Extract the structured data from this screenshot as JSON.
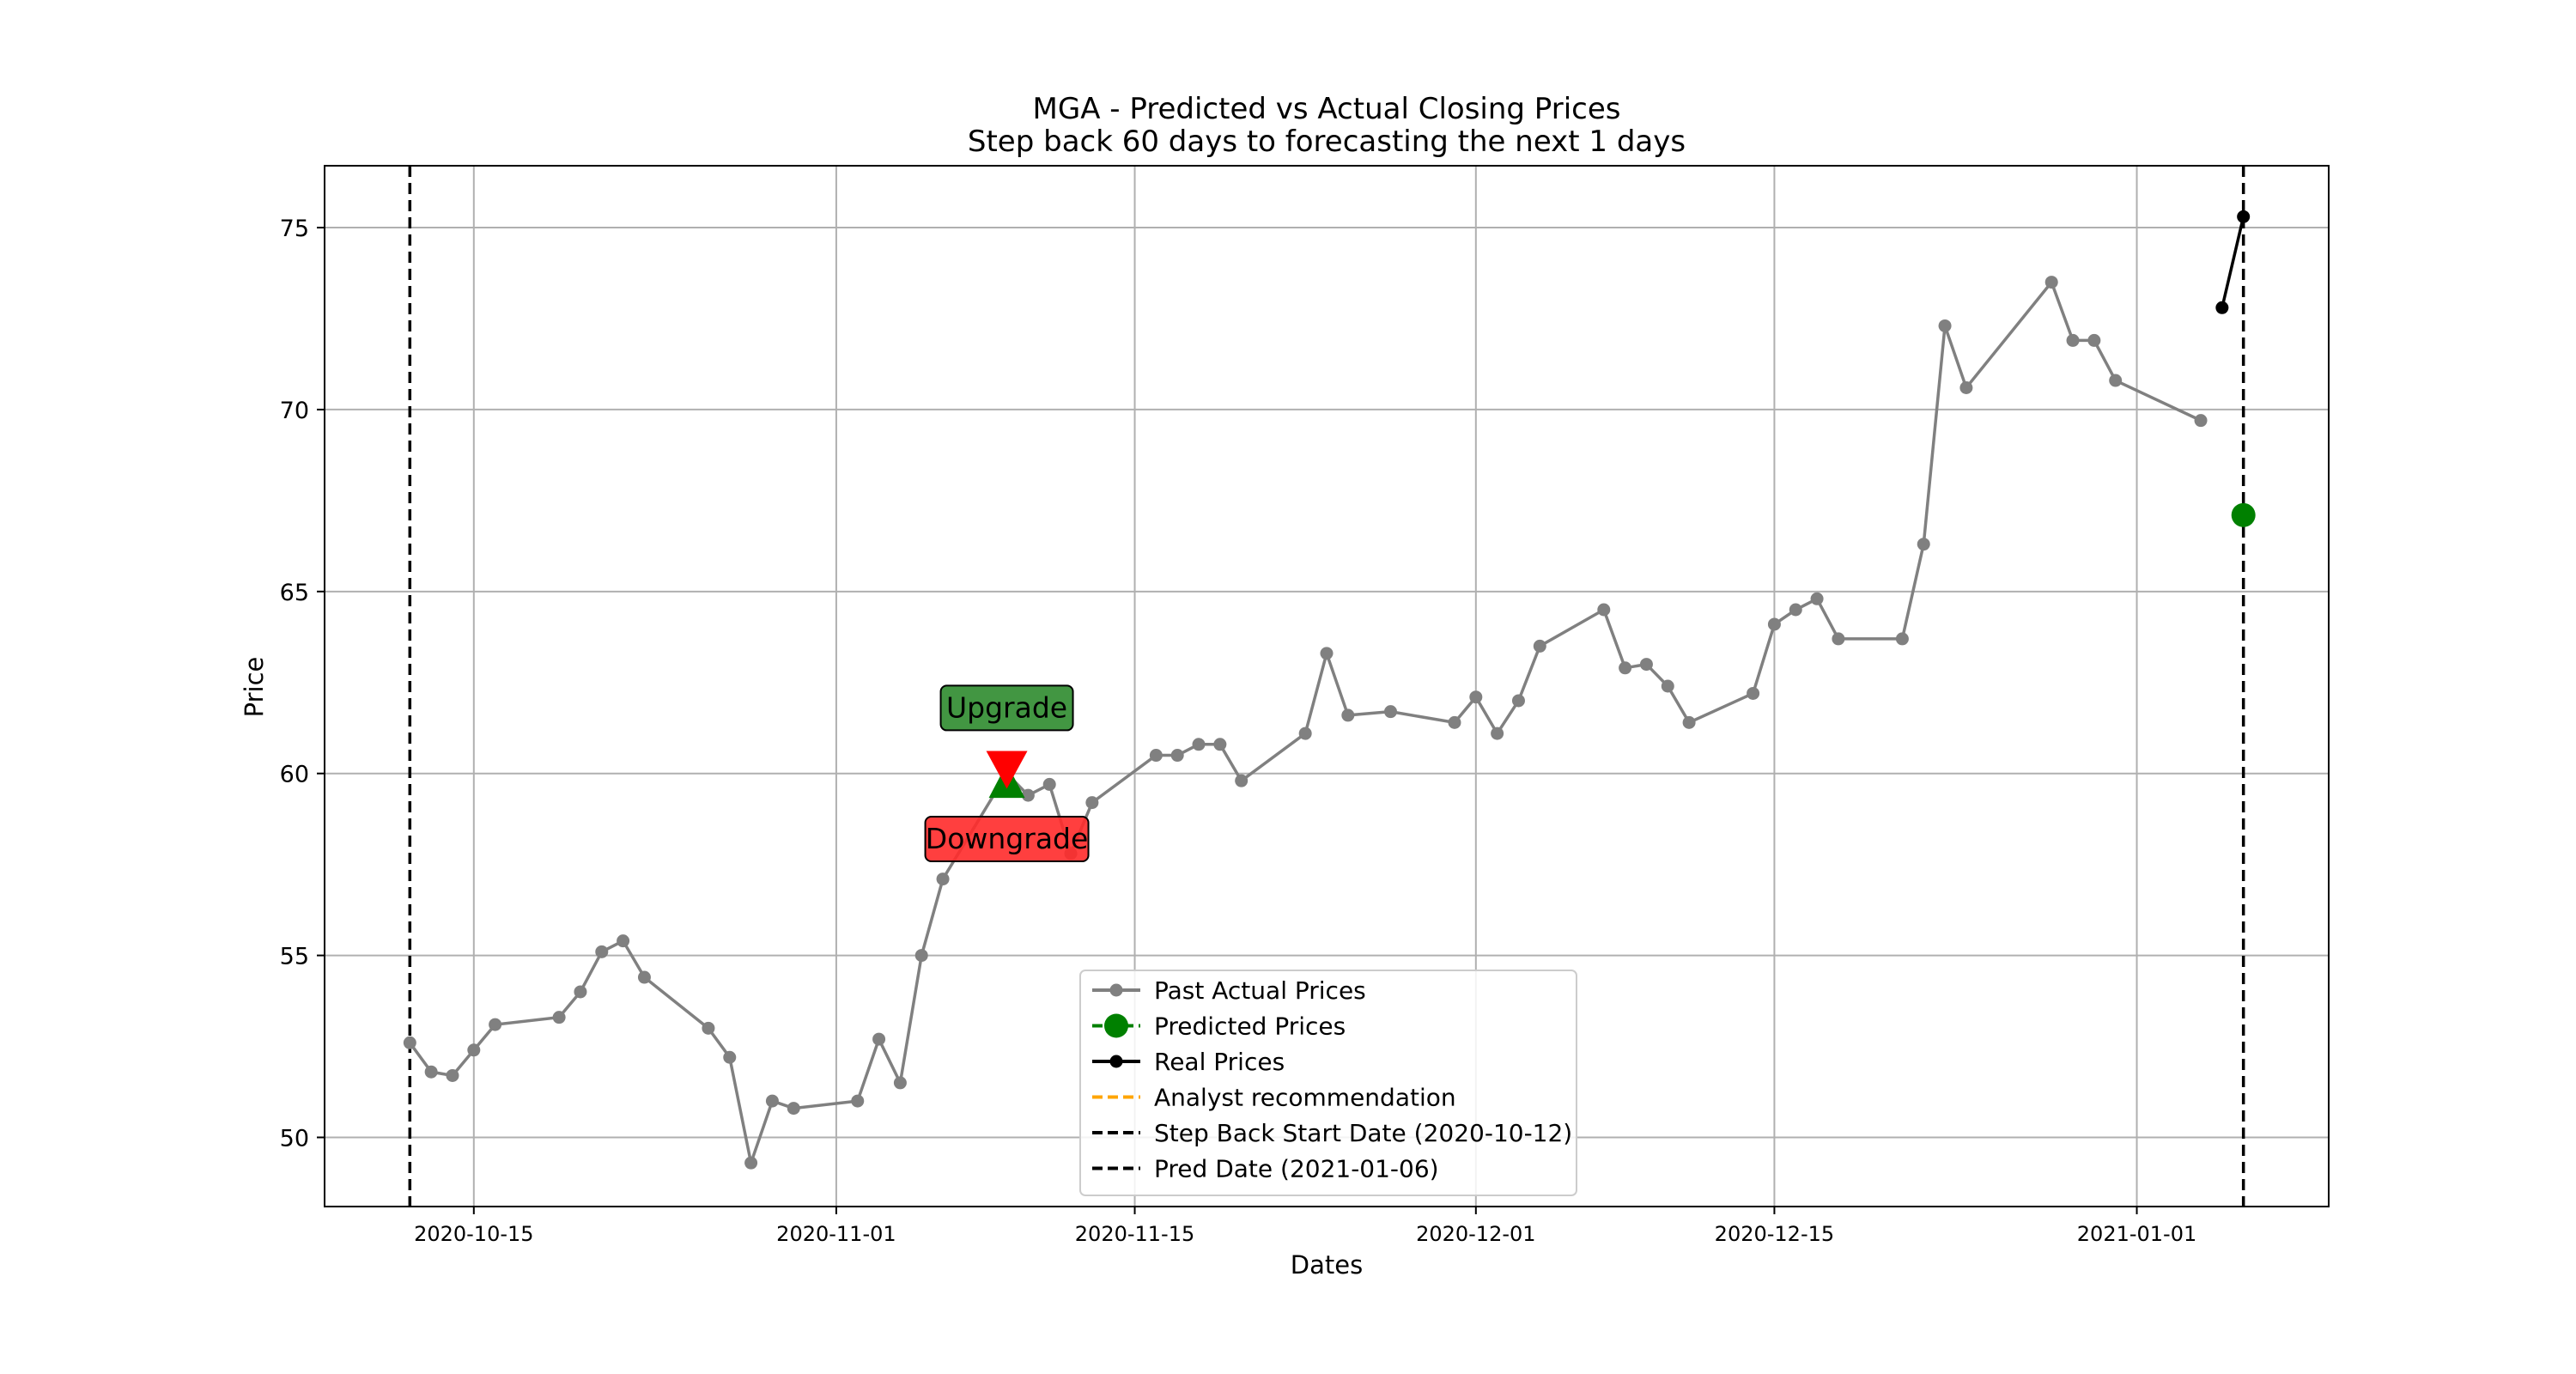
{
  "chart_data": {
    "type": "line",
    "title": "MGA - Predicted vs Actual Closing Prices",
    "subtitle": "Step back 60 days to forecasting the next 1 days",
    "xlabel": "Dates",
    "ylabel": "Price",
    "xlim": [
      "2020-10-08",
      "2021-01-10"
    ],
    "ylim": [
      48.1,
      76.7
    ],
    "grid": true,
    "legend_position": "lower center",
    "x_ticks": [
      "2020-10-15",
      "2020-11-01",
      "2020-11-15",
      "2020-12-01",
      "2020-12-15",
      "2021-01-01"
    ],
    "y_ticks": [
      50,
      55,
      60,
      65,
      70,
      75
    ],
    "colors": {
      "past": "#808080",
      "predicted": "#008000",
      "real": "#000000",
      "analyst": "#ffa500",
      "upgrade_box": "#2e8b2e",
      "downgrade_box": "#ff2a2a",
      "downgrade_marker": "#ff0000"
    },
    "series": [
      {
        "name": "Past Actual Prices",
        "style": "gray line with dot markers",
        "x": [
          "2020-10-12",
          "2020-10-13",
          "2020-10-14",
          "2020-10-15",
          "2020-10-16",
          "2020-10-19",
          "2020-10-20",
          "2020-10-21",
          "2020-10-22",
          "2020-10-23",
          "2020-10-26",
          "2020-10-27",
          "2020-10-28",
          "2020-10-29",
          "2020-10-30",
          "2020-11-02",
          "2020-11-03",
          "2020-11-04",
          "2020-11-05",
          "2020-11-06",
          "2020-11-09",
          "2020-11-10",
          "2020-11-11",
          "2020-11-12",
          "2020-11-13",
          "2020-11-16",
          "2020-11-17",
          "2020-11-18",
          "2020-11-19",
          "2020-11-20",
          "2020-11-23",
          "2020-11-24",
          "2020-11-25",
          "2020-11-27",
          "2020-11-30",
          "2020-12-01",
          "2020-12-02",
          "2020-12-03",
          "2020-12-04",
          "2020-12-07",
          "2020-12-08",
          "2020-12-09",
          "2020-12-10",
          "2020-12-11",
          "2020-12-14",
          "2020-12-15",
          "2020-12-16",
          "2020-12-17",
          "2020-12-18",
          "2020-12-21",
          "2020-12-22",
          "2020-12-23",
          "2020-12-24",
          "2020-12-28",
          "2020-12-29",
          "2020-12-30",
          "2020-12-31",
          "2021-01-04"
        ],
        "values": [
          52.6,
          51.8,
          51.7,
          52.4,
          53.1,
          53.3,
          54.0,
          55.1,
          55.4,
          54.4,
          53.0,
          52.2,
          49.3,
          51.0,
          50.8,
          51.0,
          52.7,
          51.5,
          55.0,
          57.1,
          60.0,
          59.4,
          59.7,
          57.8,
          59.2,
          60.5,
          60.5,
          60.8,
          60.8,
          59.8,
          61.1,
          63.3,
          61.6,
          61.7,
          61.4,
          62.1,
          61.1,
          62.0,
          63.5,
          64.5,
          62.9,
          63.0,
          62.4,
          61.4,
          62.2,
          64.1,
          64.5,
          64.8,
          63.7,
          63.7,
          66.3,
          72.3,
          70.6,
          73.5,
          71.9,
          71.9,
          70.8,
          69.7
        ]
      },
      {
        "name": "Predicted Prices",
        "style": "green large circle marker",
        "x": [
          "2021-01-06"
        ],
        "values": [
          67.1
        ]
      },
      {
        "name": "Real Prices",
        "style": "black line with dot markers",
        "x": [
          "2021-01-05",
          "2021-01-06"
        ],
        "values": [
          72.8,
          75.3
        ]
      },
      {
        "name": "Analyst recommendation",
        "style": "orange dashed line",
        "x": [],
        "values": []
      },
      {
        "name": "Step Back Start Date (2020-10-12)",
        "style": "black dashed vertical line",
        "x": [
          "2020-10-12"
        ]
      },
      {
        "name": "Pred Date (2021-01-06)",
        "style": "black dashed vertical line",
        "x": [
          "2021-01-06"
        ]
      }
    ],
    "annotations": [
      {
        "text": "Upgrade",
        "date": "2020-11-09",
        "value": 59.8,
        "marker": "green up triangle",
        "label_value": 61.8
      },
      {
        "text": "Downgrade",
        "date": "2020-11-09",
        "value": 60.1,
        "marker": "red down triangle",
        "label_value": 58.2
      }
    ]
  }
}
